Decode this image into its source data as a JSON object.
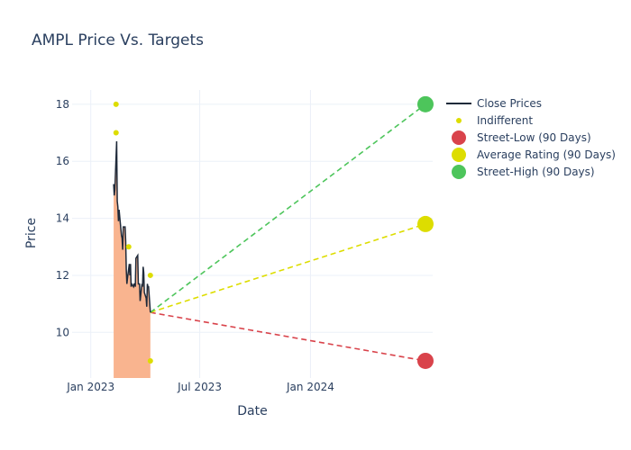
{
  "chart_data": {
    "type": "line",
    "title": "AMPL Price Vs. Targets",
    "xlabel": "Date",
    "ylabel": "Price",
    "xlim": [
      "2022-12-01",
      "2024-07-22"
    ],
    "ylim": [
      8.4,
      18.5
    ],
    "x_ticks": [
      {
        "date": "2023-01-01",
        "label": "Jan 2023"
      },
      {
        "date": "2023-07-01",
        "label": "Jul 2023"
      },
      {
        "date": "2024-01-01",
        "label": "Jan 2024"
      }
    ],
    "y_ticks": [
      10,
      12,
      14,
      16,
      18
    ],
    "grid": true,
    "legend_position": "top-right",
    "series": [
      {
        "name": "Close Prices",
        "kind": "line",
        "color": "#1f2a3a",
        "fill_color": "#f9b48f",
        "points": [
          [
            "2023-02-08",
            15.2
          ],
          [
            "2023-02-09",
            14.8
          ],
          [
            "2023-02-10",
            15.0
          ],
          [
            "2023-02-13",
            16.7
          ],
          [
            "2023-02-14",
            14.6
          ],
          [
            "2023-02-15",
            14.4
          ],
          [
            "2023-02-16",
            13.9
          ],
          [
            "2023-02-17",
            14.3
          ],
          [
            "2023-02-21",
            13.4
          ],
          [
            "2023-02-22",
            13.3
          ],
          [
            "2023-02-23",
            12.9
          ],
          [
            "2023-02-24",
            13.7
          ],
          [
            "2023-02-27",
            13.7
          ],
          [
            "2023-02-28",
            13.2
          ],
          [
            "2023-03-01",
            12.2
          ],
          [
            "2023-03-02",
            11.7
          ],
          [
            "2023-03-03",
            11.9
          ],
          [
            "2023-03-06",
            12.4
          ],
          [
            "2023-03-07",
            12.0
          ],
          [
            "2023-03-08",
            12.4
          ],
          [
            "2023-03-09",
            11.6
          ],
          [
            "2023-03-10",
            11.7
          ],
          [
            "2023-03-13",
            11.6
          ],
          [
            "2023-03-14",
            11.7
          ],
          [
            "2023-03-15",
            11.7
          ],
          [
            "2023-03-16",
            11.6
          ],
          [
            "2023-03-17",
            12.6
          ],
          [
            "2023-03-20",
            12.7
          ],
          [
            "2023-03-21",
            11.7
          ],
          [
            "2023-03-22",
            11.7
          ],
          [
            "2023-03-23",
            11.7
          ],
          [
            "2023-03-24",
            11.1
          ],
          [
            "2023-03-27",
            11.7
          ],
          [
            "2023-03-28",
            11.6
          ],
          [
            "2023-03-29",
            12.3
          ],
          [
            "2023-03-30",
            12.1
          ],
          [
            "2023-03-31",
            11.4
          ],
          [
            "2023-04-03",
            11.2
          ],
          [
            "2023-04-04",
            10.9
          ],
          [
            "2023-04-05",
            11.7
          ],
          [
            "2023-04-06",
            11.6
          ],
          [
            "2023-04-07",
            11.6
          ],
          [
            "2023-04-10",
            10.7
          ]
        ]
      },
      {
        "name": "Indifferent",
        "kind": "markers",
        "color": "#dddd00",
        "points": [
          [
            "2023-02-12",
            18.0
          ],
          [
            "2023-02-12",
            17.0
          ],
          [
            "2023-03-05",
            13.0
          ],
          [
            "2023-04-10",
            12.0
          ],
          [
            "2023-04-10",
            9.0
          ]
        ]
      },
      {
        "name": "Street-Low (90 Days)",
        "kind": "target",
        "color": "#d9434b",
        "from": [
          "2023-04-10",
          10.7
        ],
        "to": [
          "2024-07-10",
          9.0
        ]
      },
      {
        "name": "Average Rating (90 Days)",
        "kind": "target",
        "color": "#dddd00",
        "from": [
          "2023-04-10",
          10.7
        ],
        "to": [
          "2024-07-10",
          13.8
        ]
      },
      {
        "name": "Street-High (90 Days)",
        "kind": "target",
        "color": "#4dc55b",
        "from": [
          "2023-04-10",
          10.7
        ],
        "to": [
          "2024-07-10",
          18.0
        ]
      }
    ]
  }
}
